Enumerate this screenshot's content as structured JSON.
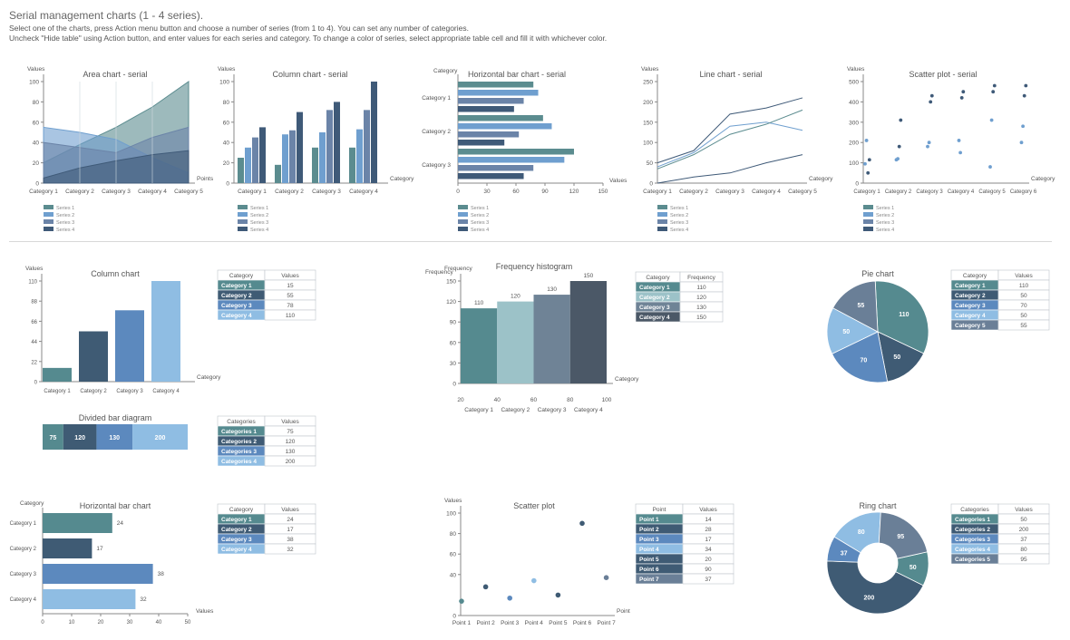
{
  "header": {
    "title": "Serial management charts (1 - 4 series).",
    "line1": "Select one of the charts, press Action menu button and choose a number of series (from 1 to 4). You can set any number of categories.",
    "line2": "Uncheck \"Hide table\" using Action button, and enter values for each series and category. To change a color of series, select appropriate table cell and fill it with whichever color."
  },
  "palette": {
    "series": [
      "#5b8c8f",
      "#6f9fcf",
      "#6b84a8",
      "#3f5a78"
    ],
    "c_teal": "#558a8f",
    "c_dark": "#3f5b74",
    "c_mid": "#5c89be",
    "c_light": "#8fbde3",
    "c_slate": "#6a7f97",
    "c_pale": "#9cc2c8",
    "c_grey": "#6f8396",
    "c_darkgrey": "#4b5867"
  },
  "legend_labels": [
    "Series 1",
    "Series 2",
    "Series 3",
    "Series 4"
  ],
  "tables": [
    {
      "id": "col",
      "x": 240,
      "y": 298,
      "headers": [
        "Category",
        "Values"
      ],
      "rows": [
        [
          "Category 1",
          "15"
        ],
        [
          "Category 2",
          "55"
        ],
        [
          "Category 3",
          "78"
        ],
        [
          "Category 4",
          "110"
        ]
      ],
      "colors": [
        "c_teal",
        "c_dark",
        "c_mid",
        "c_light"
      ]
    },
    {
      "id": "div",
      "x": 240,
      "y": 459,
      "headers": [
        "Categories",
        "Values"
      ],
      "rows": [
        [
          "Categories 1",
          "75"
        ],
        [
          "Categories 2",
          "120"
        ],
        [
          "Categories 3",
          "130"
        ],
        [
          "Categories 4",
          "200"
        ]
      ],
      "colors": [
        "c_teal",
        "c_dark",
        "c_mid",
        "c_light"
      ]
    },
    {
      "id": "hbar",
      "x": 240,
      "y": 556,
      "headers": [
        "Category",
        "Values"
      ],
      "rows": [
        [
          "Category 1",
          "24"
        ],
        [
          "Category 2",
          "17"
        ],
        [
          "Category 3",
          "38"
        ],
        [
          "Category 4",
          "32"
        ]
      ],
      "colors": [
        "c_teal",
        "c_dark",
        "c_mid",
        "c_light"
      ]
    },
    {
      "id": "freq",
      "x": 701,
      "y": 300,
      "headers": [
        "Category",
        "Frequency"
      ],
      "rows": [
        [
          "Category 1",
          "110"
        ],
        [
          "Category 2",
          "120"
        ],
        [
          "Category 3",
          "130"
        ],
        [
          "Category 4",
          "150"
        ]
      ],
      "colors": [
        "c_teal",
        "c_pale",
        "c_grey",
        "c_darkgrey"
      ]
    },
    {
      "id": "sc",
      "x": 701,
      "y": 556,
      "headers": [
        "Point",
        "Values"
      ],
      "rows": [
        [
          "Point 1",
          "14"
        ],
        [
          "Point 2",
          "28"
        ],
        [
          "Point 3",
          "17"
        ],
        [
          "Point 4",
          "34"
        ],
        [
          "Point 5",
          "20"
        ],
        [
          "Point 6",
          "90"
        ],
        [
          "Point 7",
          "37"
        ]
      ],
      "colors": [
        "c_teal",
        "c_dark",
        "c_mid",
        "c_light",
        "c_dark",
        "c_dark",
        "c_slate"
      ]
    },
    {
      "id": "pie",
      "x": 1049,
      "y": 298,
      "headers": [
        "Category",
        "Values"
      ],
      "rows": [
        [
          "Category 1",
          "110"
        ],
        [
          "Category 2",
          "50"
        ],
        [
          "Category 3",
          "70"
        ],
        [
          "Category 4",
          "50"
        ],
        [
          "Category 5",
          "55"
        ]
      ],
      "colors": [
        "c_teal",
        "c_dark",
        "c_mid",
        "c_light",
        "c_slate"
      ]
    },
    {
      "id": "ring",
      "x": 1049,
      "y": 556,
      "headers": [
        "Categories",
        "Values"
      ],
      "rows": [
        [
          "Categories 1",
          "50"
        ],
        [
          "Categories 2",
          "200"
        ],
        [
          "Categories 3",
          "37"
        ],
        [
          "Categories 4",
          "80"
        ],
        [
          "Categories 5",
          "95"
        ]
      ],
      "colors": [
        "c_teal",
        "c_dark",
        "c_mid",
        "c_light",
        "c_slate"
      ]
    }
  ],
  "chart_data": [
    {
      "id": "area",
      "type": "area",
      "title": "Area chart - serial",
      "ylabel": "Values",
      "xlabel": "Points",
      "ylim": [
        0,
        100
      ],
      "yticks": [
        0,
        20,
        40,
        60,
        80,
        100
      ],
      "categories": [
        "Category 1",
        "Category 2",
        "Category 3",
        "Category 4",
        "Category 5"
      ],
      "series": [
        {
          "name": "Series 1",
          "values": [
            20,
            38,
            55,
            75,
            100
          ]
        },
        {
          "name": "Series 2",
          "values": [
            55,
            50,
            43,
            25,
            10
          ]
        },
        {
          "name": "Series 3",
          "values": [
            40,
            35,
            30,
            45,
            55
          ]
        },
        {
          "name": "Series 4",
          "values": [
            5,
            15,
            22,
            28,
            32
          ]
        }
      ]
    },
    {
      "id": "colser",
      "type": "bar",
      "title": "Column chart - serial",
      "ylabel": "Values",
      "xlabel": "Category",
      "ylim": [
        0,
        100
      ],
      "yticks": [
        0,
        20,
        40,
        60,
        80,
        100
      ],
      "categories": [
        "Category 1",
        "Category 2",
        "Category 3",
        "Category 4"
      ],
      "series": [
        {
          "name": "Series 1",
          "values": [
            25,
            18,
            35,
            35
          ]
        },
        {
          "name": "Series 2",
          "values": [
            35,
            48,
            50,
            53
          ]
        },
        {
          "name": "Series 3",
          "values": [
            45,
            52,
            72,
            72
          ]
        },
        {
          "name": "Series 4",
          "values": [
            55,
            70,
            80,
            100
          ]
        }
      ]
    },
    {
      "id": "hbarser",
      "type": "bar",
      "title": "Horizontal bar chart - serial",
      "ylabel": "Category",
      "xlabel": "Values",
      "ylim": [
        0,
        150
      ],
      "yticks": [
        0,
        30,
        60,
        90,
        120,
        150
      ],
      "categories": [
        "Category 1",
        "Category 2",
        "Category 3"
      ],
      "series": [
        {
          "name": "Series 1",
          "values": [
            78,
            88,
            120
          ]
        },
        {
          "name": "Series 2",
          "values": [
            83,
            97,
            110
          ]
        },
        {
          "name": "Series 3",
          "values": [
            68,
            63,
            78
          ]
        },
        {
          "name": "Series 4",
          "values": [
            58,
            48,
            68
          ]
        }
      ]
    },
    {
      "id": "line",
      "type": "line",
      "title": "Line chart - serial",
      "ylabel": "Values",
      "xlabel": "Category",
      "ylim": [
        0,
        250
      ],
      "yticks": [
        0,
        50,
        100,
        150,
        200,
        250
      ],
      "categories": [
        "Category 1",
        "Category 2",
        "Category 3",
        "Category 4",
        "Category 5"
      ],
      "series": [
        {
          "name": "Series 1",
          "values": [
            50,
            80,
            170,
            185,
            210
          ]
        },
        {
          "name": "Series 2",
          "values": [
            40,
            75,
            140,
            150,
            130
          ]
        },
        {
          "name": "Series 3",
          "values": [
            35,
            70,
            120,
            145,
            180
          ]
        },
        {
          "name": "Series 4",
          "values": [
            0,
            15,
            25,
            50,
            70
          ]
        }
      ]
    },
    {
      "id": "scser",
      "type": "scatter",
      "title": "Scatter plot - serial",
      "ylabel": "Values",
      "xlabel": "Category",
      "ylim": [
        0,
        500
      ],
      "yticks": [
        0,
        100,
        200,
        300,
        400,
        500
      ],
      "categories": [
        "Category 1",
        "Category 2",
        "Category 3",
        "Category 4",
        "Category 5",
        "Category 6"
      ],
      "series": [
        {
          "name": "Series 1",
          "values": [
            95,
            115,
            180,
            210,
            80,
            200
          ]
        },
        {
          "name": "Series 2",
          "values": [
            210,
            120,
            200,
            150,
            310,
            280
          ]
        },
        {
          "name": "Series 3",
          "values": [
            50,
            180,
            400,
            420,
            450,
            430
          ]
        },
        {
          "name": "Series 4",
          "values": [
            115,
            310,
            430,
            450,
            480,
            480
          ]
        }
      ]
    },
    {
      "id": "col",
      "type": "bar",
      "title": "Column chart",
      "ylabel": "Values",
      "xlabel": "Category",
      "ylim": [
        0,
        110
      ],
      "yticks": [
        0,
        22,
        44,
        66,
        88,
        110
      ],
      "categories": [
        "Category 1",
        "Category 2",
        "Category 3",
        "Category 4"
      ],
      "values": [
        15,
        55,
        78,
        110
      ]
    },
    {
      "id": "div",
      "type": "bar",
      "title": "Divided bar diagram",
      "categories": [
        "Categories 1",
        "Categories 2",
        "Categories 3",
        "Categories 4"
      ],
      "values": [
        75,
        120,
        130,
        200
      ]
    },
    {
      "id": "hbar",
      "type": "bar",
      "title": "Horizontal bar chart",
      "ylabel": "Category",
      "xlabel": "Values",
      "ylim": [
        0,
        50
      ],
      "yticks": [
        0,
        10,
        20,
        30,
        40,
        50
      ],
      "categories": [
        "Category 1",
        "Category 2",
        "Category 3",
        "Category 4"
      ],
      "values": [
        24,
        17,
        38,
        32
      ]
    },
    {
      "id": "freq",
      "type": "bar",
      "title": "Frequency histogram",
      "ylabel": "Frequency",
      "xlabel": "Category",
      "ylim": [
        0,
        150
      ],
      "yticks": [
        0,
        30,
        60,
        90,
        120,
        150
      ],
      "xticks": [
        20,
        40,
        60,
        80,
        100
      ],
      "categories": [
        "Category 1",
        "Category 2",
        "Category 3",
        "Category 4"
      ],
      "values": [
        110,
        120,
        130,
        150
      ]
    },
    {
      "id": "sc",
      "type": "scatter",
      "title": "Scatter plot",
      "ylabel": "Values",
      "xlabel": "Point",
      "ylim": [
        0,
        100
      ],
      "yticks": [
        0,
        40,
        60,
        80,
        100
      ],
      "categories": [
        "Point 1",
        "Point 2",
        "Point 3",
        "Point 4",
        "Point 5",
        "Point 6",
        "Point 7"
      ],
      "values": [
        14,
        28,
        17,
        34,
        20,
        90,
        37
      ]
    },
    {
      "id": "pie",
      "type": "pie",
      "title": "Pie chart",
      "categories": [
        "Category 1",
        "Category 2",
        "Category 3",
        "Category 4",
        "Category 5"
      ],
      "values": [
        110,
        50,
        70,
        50,
        55
      ]
    },
    {
      "id": "ring",
      "type": "pie",
      "title": "Ring chart",
      "categories": [
        "Categories 1",
        "Categories 2",
        "Categories 3",
        "Categories 4",
        "Categories 5"
      ],
      "values": [
        50,
        200,
        37,
        80,
        95
      ]
    }
  ]
}
